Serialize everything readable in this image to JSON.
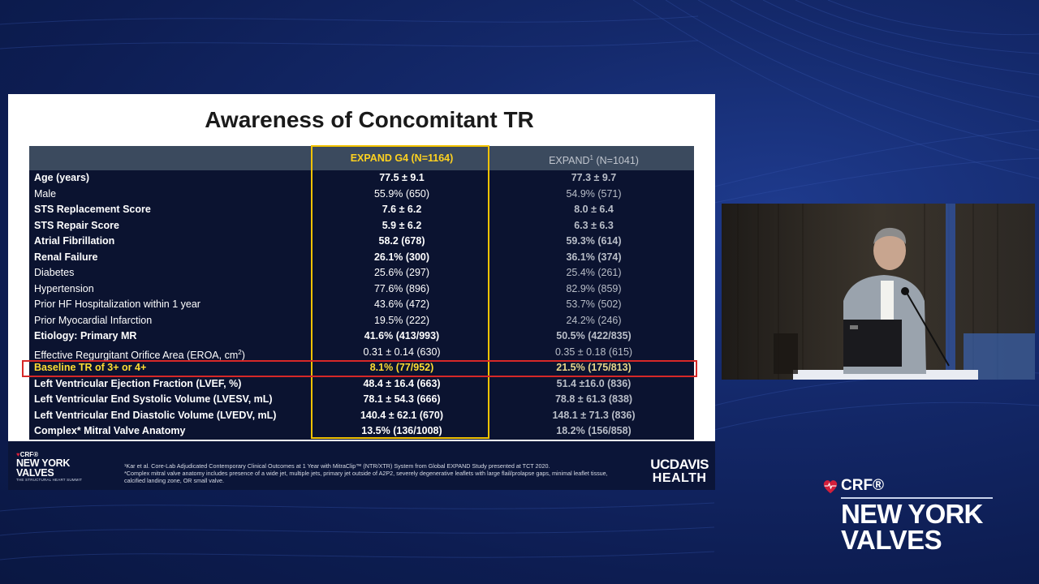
{
  "slide": {
    "title": "Awareness of Concomitant TR",
    "col1_header": "EXPAND G4 (N=1164)",
    "col2_header_pre": "EXPAND",
    "col2_header_sup": "1",
    "col2_header_post": " (N=1041)",
    "rows": [
      {
        "label": "Age (years)",
        "g4": "77.5 ± 9.1",
        "expand": "77.3 ± 9.7",
        "bold": true
      },
      {
        "label": "Male",
        "g4": "55.9% (650)",
        "expand": "54.9% (571)",
        "bold": false
      },
      {
        "label": "STS Replacement Score",
        "g4": "7.6 ± 6.2",
        "expand": "8.0 ± 6.4",
        "bold": true
      },
      {
        "label": "STS Repair Score",
        "g4": "5.9 ± 6.2",
        "expand": "6.3 ± 6.3",
        "bold": true
      },
      {
        "label": "Atrial Fibrillation",
        "g4": "58.2 (678)",
        "expand": "59.3% (614)",
        "bold": true
      },
      {
        "label": "Renal Failure",
        "g4": "26.1% (300)",
        "expand": "36.1% (374)",
        "bold": true
      },
      {
        "label": "Diabetes",
        "g4": "25.6% (297)",
        "expand": "25.4% (261)",
        "bold": false
      },
      {
        "label": "Hypertension",
        "g4": "77.6% (896)",
        "expand": "82.9% (859)",
        "bold": false
      },
      {
        "label": "Prior HF Hospitalization within 1 year",
        "g4": "43.6% (472)",
        "expand": "53.7% (502)",
        "bold": false
      },
      {
        "label": "Prior Myocardial Infarction",
        "g4": "19.5% (222)",
        "expand": "24.2% (246)",
        "bold": false
      },
      {
        "label": "Etiology: Primary MR",
        "g4": "41.6% (413/993)",
        "expand": "50.5% (422/835)",
        "bold": true
      },
      {
        "label": "Effective Regurgitant Orifice Area (EROA, cm",
        "label_sup": "2",
        "label_post": ")",
        "g4": "0.31 ± 0.14 (630)",
        "expand": "0.35 ± 0.18 (615)",
        "bold": false
      },
      {
        "label": "Baseline TR of 3+ or 4+",
        "g4": "8.1% (77/952)",
        "expand": "21.5% (175/813)",
        "bold": true,
        "highlight": true
      },
      {
        "label": "Left Ventricular Ejection Fraction (LVEF, %)",
        "g4": "48.4 ± 16.4 (663)",
        "expand": "51.4 ±16.0 (836)",
        "bold": true
      },
      {
        "label": "Left Ventricular End Systolic Volume (LVESV, mL)",
        "g4": "78.1 ± 54.3 (666)",
        "expand": "78.8 ± 61.3 (838)",
        "bold": true
      },
      {
        "label": "Left Ventricular End Diastolic Volume (LVEDV, mL)",
        "g4": "140.4 ± 62.1 (670)",
        "expand": "148.1 ± 71.3 (836)",
        "bold": true
      },
      {
        "label": "Complex* Mitral Valve Anatomy",
        "g4": "13.5% (136/1008)",
        "expand": "18.2% (156/858)",
        "bold": true
      }
    ],
    "footnote1": "¹Kar et al. Core-Lab Adjudicated Contemporary Clinical Outcomes at 1 Year with MitraClip™ (NTR/XTR) System from Global EXPAND Study presented at TCT 2020.",
    "footnote2": "*Complex mitral valve anatomy includes presence of a wide jet, multiple jets, primary jet outside of A2P2, severely degenerative leaflets with large flail/prolapse gaps, minimal leaflet tissue, calcified landing zone, OR small valve.",
    "logo_left": {
      "crf": "CRF®",
      "line1": "NEW YORK",
      "line2": "VALVES",
      "tag": "THE STRUCTURAL HEART SUMMIT"
    },
    "logo_right": {
      "line1": "UCDAVIS",
      "line2": "HEALTH"
    }
  },
  "brand": {
    "crf": "CRF®",
    "line1": "NEW YORK",
    "line2": "VALVES"
  },
  "colors": {
    "background": "#14296b",
    "table_bg": "#0b1330",
    "header_bg": "#3b4a5e",
    "accent_yellow": "#f2c200",
    "highlight_red": "#d62828",
    "crf_red": "#d31f3a"
  }
}
